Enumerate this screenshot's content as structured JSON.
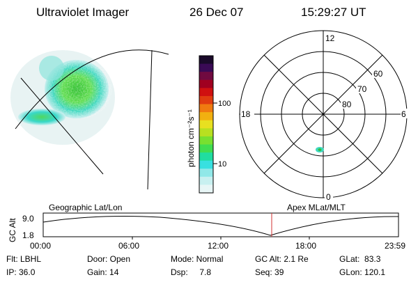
{
  "header": {
    "instrument": "Ultraviolet Imager",
    "date": "26 Dec 07",
    "time": "15:29:27 UT"
  },
  "colorbar": {
    "unit_label": "photon cm⁻²s⁻¹",
    "tick_labels": [
      "100",
      "10"
    ],
    "colors_top_to_bottom": [
      "#1a0a2a",
      "#3a0a55",
      "#700a40",
      "#a00020",
      "#d01010",
      "#e03c10",
      "#f07a10",
      "#f2b010",
      "#e8e020",
      "#b8e020",
      "#78e030",
      "#40dd50",
      "#20dda0",
      "#38e0e0",
      "#90e8e8",
      "#c8f0f0",
      "#e8f6f6"
    ]
  },
  "polar_plot": {
    "mlt_labels": [
      "12",
      "18",
      "6",
      "0"
    ],
    "lat_labels": [
      "60",
      "70",
      "80"
    ]
  },
  "timeline": {
    "left_title": "Geographic Lat/Lon",
    "right_title": "Apex MLat/MLT",
    "y_axis_label": "GC Alt",
    "y_ticks": [
      "9.0",
      "1.8"
    ],
    "x_ticks": [
      "00:00",
      "06:00",
      "12:00",
      "18:00",
      "23:59"
    ],
    "marker_color": "#d03030"
  },
  "status": {
    "filter": "Flt: LBHL",
    "door": "Door: Open",
    "mode": "Mode: Normal",
    "gc_alt": "GC Alt: 2.1 Re",
    "glat": "GLat:  83.3",
    "ip": "IP: 36.0",
    "gain": "Gain: 14",
    "dsp": "Dsp:     7.8",
    "seq": "Seq: 39",
    "glon": "GLon: 120.1"
  }
}
